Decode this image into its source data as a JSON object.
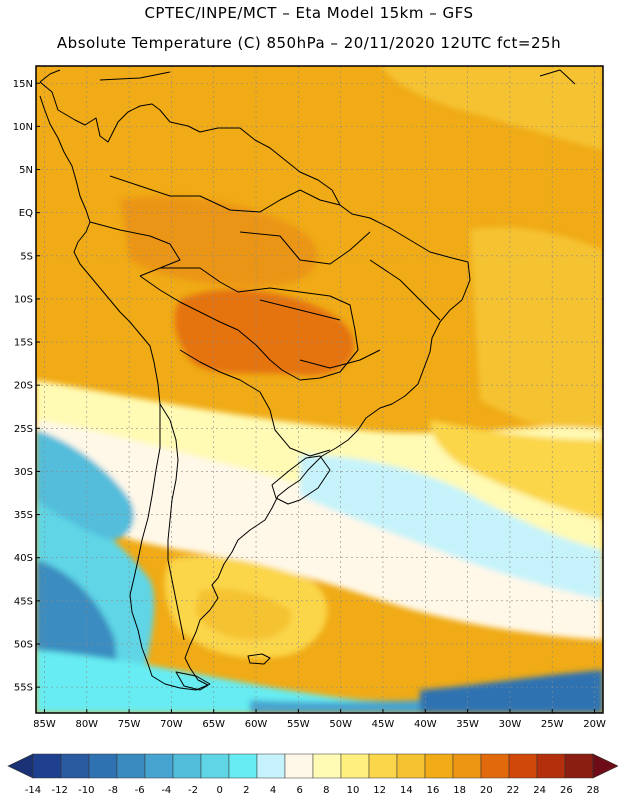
{
  "header": {
    "line1": "CPTEC/INPE/MCT –  Eta Model 15km – GFS",
    "line2": "Absolute Temperature (C) 850hPa – 20/11/2020 12UTC fct=25h"
  },
  "map": {
    "lat_labels": [
      "15N",
      "10N",
      "5N",
      "EQ",
      "5S",
      "10S",
      "15S",
      "20S",
      "25S",
      "30S",
      "35S",
      "40S",
      "45S",
      "50S",
      "55S"
    ],
    "lon_labels": [
      "85W",
      "80W",
      "75W",
      "70W",
      "65W",
      "60W",
      "55W",
      "50W",
      "45W",
      "40W",
      "35W",
      "30W",
      "25W",
      "20W"
    ],
    "lat_values": [
      15,
      10,
      5,
      0,
      -5,
      -10,
      -15,
      -20,
      -25,
      -30,
      -35,
      -40,
      -45,
      -50,
      -55
    ],
    "lon_values": [
      -85,
      -80,
      -75,
      -70,
      -65,
      -60,
      -55,
      -50,
      -45,
      -40,
      -35,
      -30,
      -25,
      -20
    ],
    "lat_range": [
      -58,
      17
    ],
    "lon_range": [
      -86,
      -19
    ]
  },
  "colorbar": {
    "labels": [
      "-14",
      "-12",
      "-10",
      "-8",
      "-6",
      "-4",
      "-2",
      "0",
      "2",
      "4",
      "6",
      "8",
      "10",
      "12",
      "14",
      "16",
      "18",
      "20",
      "22",
      "24",
      "26",
      "28"
    ],
    "colors": [
      "#1f3f8f",
      "#2a5aa0",
      "#2f72b2",
      "#3a8cc0",
      "#47a3cf",
      "#52bddb",
      "#5fd5e6",
      "#66ecf2",
      "#c6f3fb",
      "#fff8e8",
      "#fffab4",
      "#fff080",
      "#fbd64a",
      "#f5c232",
      "#f0ab16",
      "#eb9512",
      "#e36a0c",
      "#d0480a",
      "#b4300c",
      "#8a1e10"
    ],
    "low_color": "#1a3275",
    "high_color": "#6e0d18"
  }
}
